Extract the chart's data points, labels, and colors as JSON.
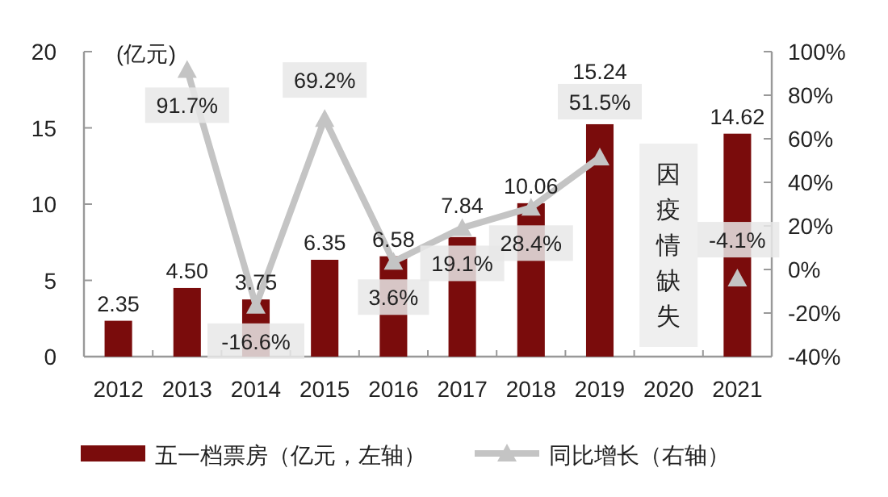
{
  "chart_data": {
    "type": "bar",
    "categories": [
      "2012",
      "2013",
      "2014",
      "2015",
      "2016",
      "2017",
      "2018",
      "2019",
      "2020",
      "2021"
    ],
    "annotations": [
      "(亿元)",
      "因疫情缺失"
    ],
    "series": [
      {
        "name": "五一档票房（亿元，左轴）",
        "color": "#7a0c0c",
        "values": [
          2.35,
          4.5,
          3.75,
          6.35,
          6.58,
          7.84,
          10.06,
          15.24,
          null,
          14.62
        ],
        "value_labels": [
          "2.35",
          "4.50",
          "3.75",
          "6.35",
          "6.58",
          "7.84",
          "10.06",
          "15.24",
          null,
          "14.62"
        ]
      },
      {
        "name": "同比增长（右轴）",
        "type": "line",
        "axis": "y2",
        "color": "#c4c4c4",
        "marker": "triangle",
        "values": [
          null,
          91.7,
          -16.6,
          69.2,
          3.6,
          19.1,
          28.4,
          51.5,
          null,
          -4.1
        ],
        "value_labels": [
          null,
          "91.7%",
          "-16.6%",
          "69.2%",
          "3.6%",
          "19.1%",
          "28.4%",
          "51.5%",
          null,
          "-4.1%"
        ]
      }
    ],
    "ylim": [
      0,
      20
    ],
    "yticks": [
      0,
      5,
      10,
      15,
      20
    ],
    "y2lim": [
      -40,
      100
    ],
    "y2ticks": [
      {
        "value": -40,
        "label": "-40%"
      },
      {
        "value": -20,
        "label": "-20%"
      },
      {
        "value": 0,
        "label": "0%"
      },
      {
        "value": 20,
        "label": "20%"
      },
      {
        "value": 40,
        "label": "40%"
      },
      {
        "value": 60,
        "label": "60%"
      },
      {
        "value": 80,
        "label": "80%"
      },
      {
        "value": 100,
        "label": "100%"
      }
    ],
    "legend": "bottom",
    "grid": false
  }
}
